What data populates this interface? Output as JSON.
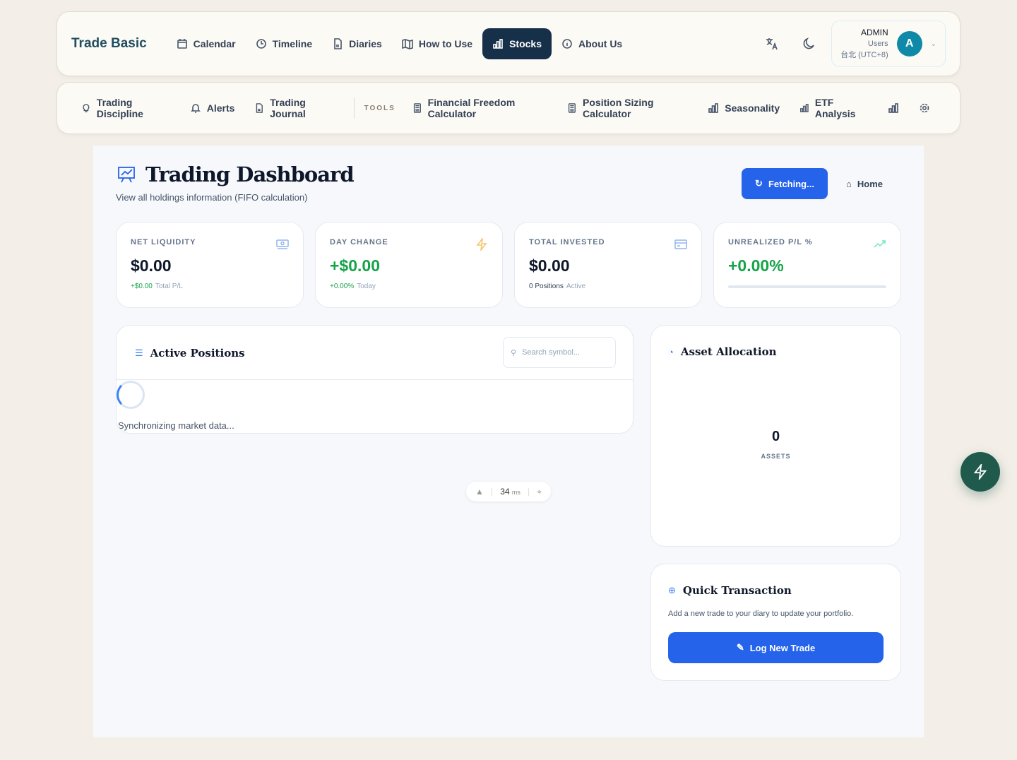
{
  "nav": {
    "brand": "Trade Basic",
    "items": [
      {
        "label": "Calendar",
        "icon": "calendar-icon"
      },
      {
        "label": "Timeline",
        "icon": "clock-icon"
      },
      {
        "label": "Diaries",
        "icon": "file-icon"
      },
      {
        "label": "How to Use",
        "icon": "map-icon"
      },
      {
        "label": "Stocks",
        "icon": "bar-chart-icon",
        "active": true
      },
      {
        "label": "About Us",
        "icon": "info-icon"
      }
    ],
    "user": {
      "name": "ADMIN",
      "role": "Users",
      "timezone": "台北 (UTC+8)",
      "initial": "A"
    }
  },
  "subnav": {
    "items": [
      {
        "label": "Trading Discipline"
      },
      {
        "label": "Alerts"
      },
      {
        "label": "Trading Journal"
      }
    ],
    "tools_label": "TOOLS",
    "tools": [
      {
        "label": "Financial Freedom Calculator"
      },
      {
        "label": "Position Sizing Calculator"
      },
      {
        "label": "Seasonality"
      },
      {
        "label": "ETF Analysis"
      }
    ]
  },
  "header": {
    "title": "Trading Dashboard",
    "subtitle": "View all holdings information (FIFO calculation)",
    "fetch_label": "Fetching...",
    "home_label": "Home"
  },
  "stats": [
    {
      "label": "NET LIQUIDITY",
      "value": "$0.00",
      "sub_value": "+$0.00",
      "sub_label": "Total P/L"
    },
    {
      "label": "DAY CHANGE",
      "value": "+$0.00",
      "sub_value": "+0.00%",
      "sub_label": "Today"
    },
    {
      "label": "TOTAL INVESTED",
      "value": "$0.00",
      "sub_value": "0 Positions",
      "sub_label": "Active"
    },
    {
      "label": "UNREALIZED P/L %",
      "value": "+0.00%",
      "progress": 0
    }
  ],
  "positions": {
    "title": "Active Positions",
    "search_placeholder": "Search symbol...",
    "loading": "Synchronizing market data..."
  },
  "allocation": {
    "title": "Asset Allocation",
    "count": "0",
    "count_label": "ASSETS"
  },
  "quick": {
    "title": "Quick Transaction",
    "desc": "Add a new trade to your diary to update your portfolio.",
    "button": "Log New Trade"
  },
  "perf": {
    "value": "34",
    "unit": "ms"
  },
  "colors": {
    "accent": "#2563eb",
    "nav_active": "#17304a",
    "positive": "#16a34a",
    "fab": "#1f5a4d"
  }
}
